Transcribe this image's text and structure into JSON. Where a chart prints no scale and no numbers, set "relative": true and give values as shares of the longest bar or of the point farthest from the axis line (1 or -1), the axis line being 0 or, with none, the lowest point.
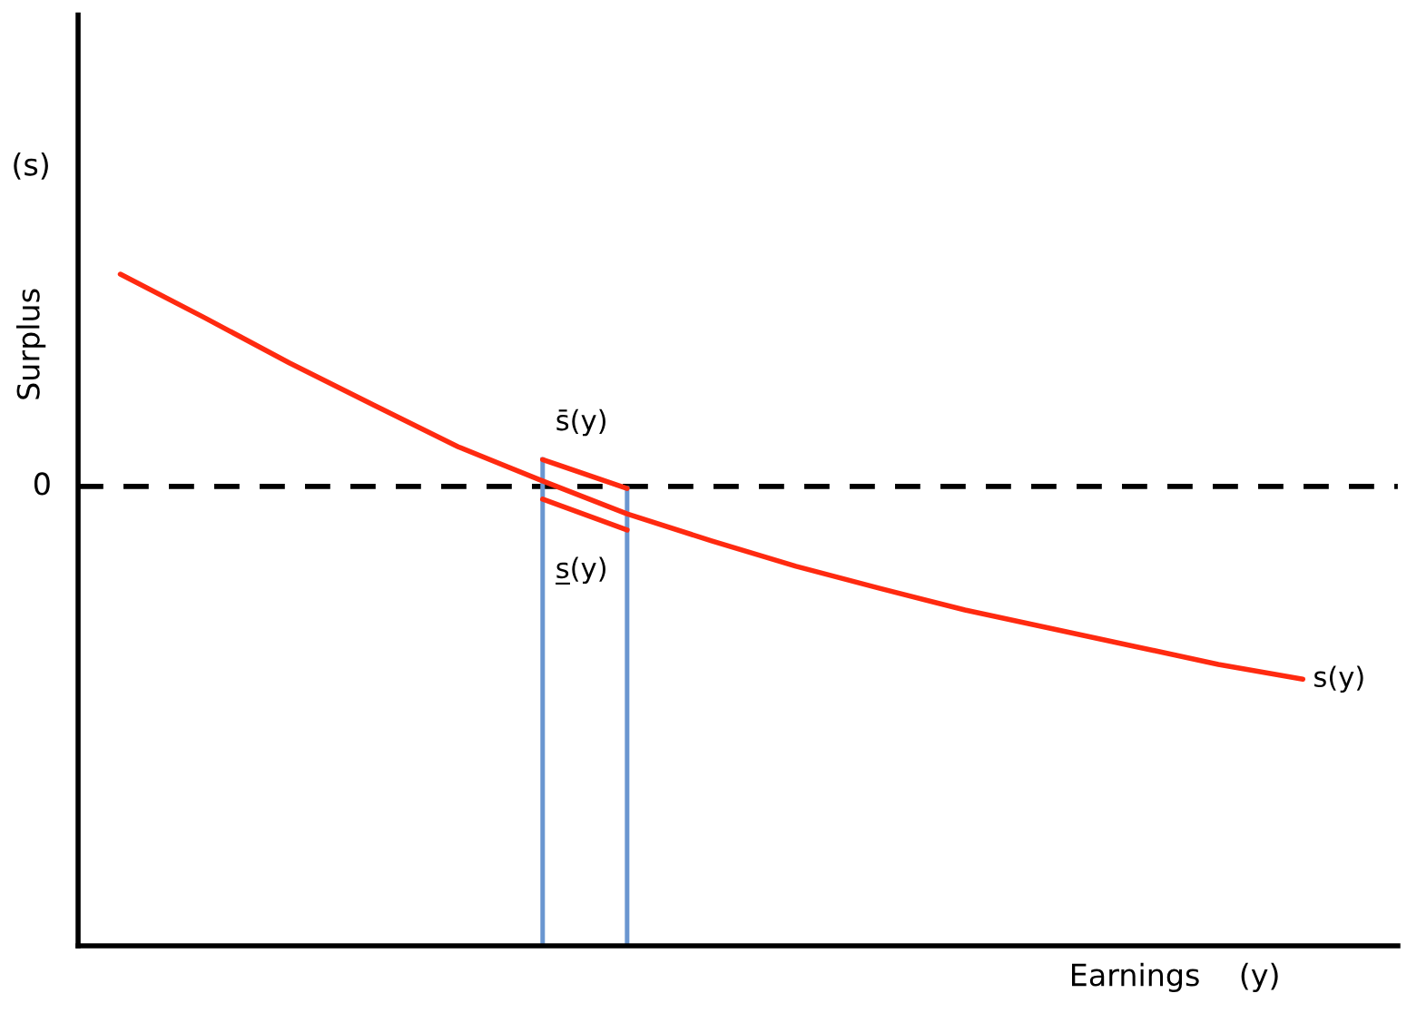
{
  "chart_data": {
    "type": "line",
    "relative": true,
    "xlabel": "Earnings    (y)",
    "ylabel": "Surplus",
    "annotations": [
      "(s)",
      "0"
    ],
    "categories": [
      null,
      null,
      null,
      null,
      null,
      null,
      null,
      null,
      null,
      null,
      null,
      null,
      null,
      null,
      null
    ],
    "series": [
      {
        "name": "s(y)",
        "color": "#ff2a10",
        "values": [
          1.0,
          0.935,
          0.868,
          0.805,
          0.743,
          0.692,
          0.643,
          0.603,
          0.565,
          0.532,
          0.5,
          0.473,
          0.446,
          0.419,
          0.397
        ]
      },
      {
        "name": "s̄(y)",
        "color": "#ff2a10",
        "values": [
          null,
          null,
          null,
          null,
          null,
          0.724,
          0.681,
          null,
          null,
          null,
          null,
          null,
          null,
          null,
          null
        ]
      },
      {
        "name": "s̲(y)",
        "color": "#ff2a10",
        "values": [
          null,
          null,
          null,
          null,
          null,
          0.665,
          0.619,
          null,
          null,
          null,
          null,
          null,
          null,
          null,
          null
        ]
      }
    ],
    "ref_lines": [
      {
        "axis": "y",
        "value": 0.684,
        "color": "#000000",
        "line_style": "dashed"
      }
    ]
  }
}
